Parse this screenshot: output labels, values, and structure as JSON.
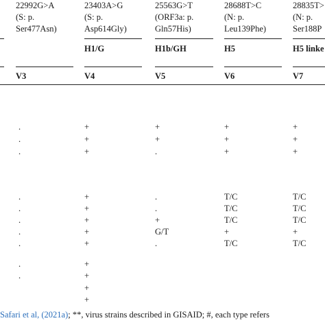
{
  "columns": [
    {
      "id": "V3",
      "mutation": "22992G>A",
      "protein": "(S: p.",
      "protein_change": "Ser477Asn)",
      "haplotype": "",
      "variant": "V3"
    },
    {
      "id": "V4",
      "mutation": "23403A>G",
      "protein": "(S: p.",
      "protein_change": "Asp614Gly)",
      "haplotype": "H1/G",
      "variant": "V4"
    },
    {
      "id": "V5",
      "mutation": "25563G>T",
      "protein": "(ORF3a: p.",
      "protein_change": "Gln57His)",
      "haplotype": "H1b/GH",
      "variant": "V5"
    },
    {
      "id": "V6",
      "mutation": "28688T>C",
      "protein": "(N: p.",
      "protein_change": "Leu139Phe)",
      "haplotype": "H5",
      "variant": "V6"
    },
    {
      "id": "V7",
      "mutation": "28835T>",
      "protein": "(N: p.",
      "protein_change": "Ser188P",
      "haplotype": "H5 linke",
      "variant": "V7"
    }
  ],
  "rows": [
    {
      "cells": [
        ".",
        "+",
        "+",
        "+",
        "+"
      ]
    },
    {
      "cells": [
        ".",
        "+",
        "+",
        "+",
        "+"
      ]
    },
    {
      "cells": [
        ".",
        "+",
        ".",
        "+",
        "+"
      ]
    },
    {
      "cells": [
        ".",
        "+",
        ".",
        "T/C",
        "T/C"
      ]
    },
    {
      "cells": [
        ".",
        "+",
        ".",
        "T/C",
        "T/C"
      ]
    },
    {
      "cells": [
        ".",
        "+",
        "+",
        "T/C",
        "T/C"
      ]
    },
    {
      "cells": [
        ".",
        "+",
        "G/T",
        "+",
        "+"
      ]
    },
    {
      "cells": [
        ".",
        "+",
        ".",
        "T/C",
        "T/C"
      ]
    },
    {
      "cells": [
        ".",
        "+",
        "",
        "",
        ""
      ]
    },
    {
      "cells": [
        ".",
        "+",
        "",
        "",
        ""
      ]
    },
    {
      "cells": [
        "",
        "+",
        "",
        "",
        ""
      ]
    },
    {
      "cells": [
        "",
        "+",
        "",
        "",
        ""
      ]
    }
  ],
  "footnote": {
    "ref": "Safari et al, (2021a)",
    "text": "; **, virus strains described in GISAID; #, each type refers"
  }
}
